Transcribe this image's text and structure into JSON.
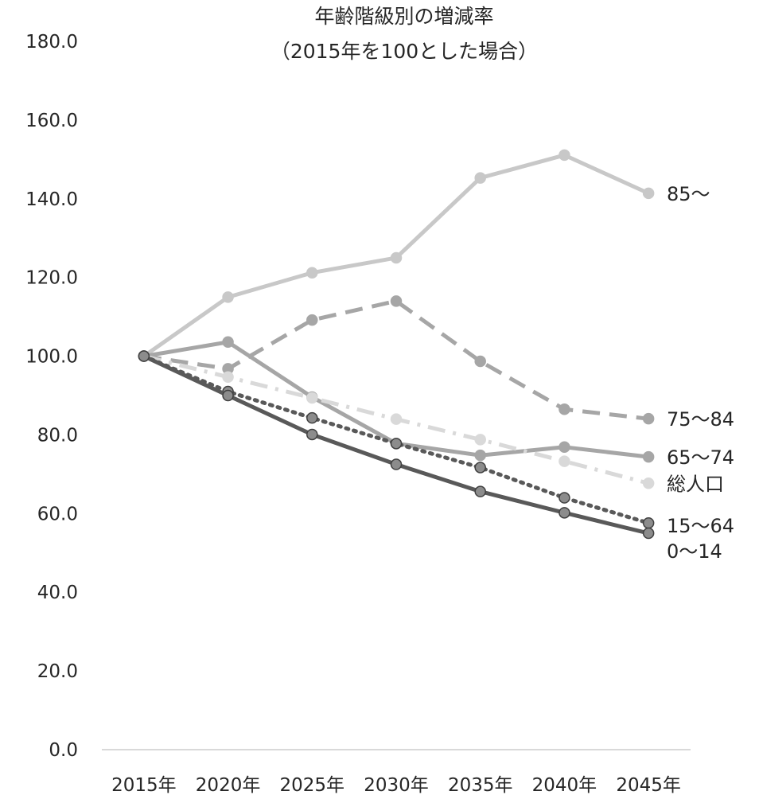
{
  "chart_data": {
    "type": "line",
    "title": "年齢階級別の増減率",
    "subtitle": "（2015年を100とした場合）",
    "xlabel": "",
    "ylabel": "",
    "categories": [
      "2015年",
      "2020年",
      "2025年",
      "2030年",
      "2035年",
      "2040年",
      "2045年"
    ],
    "ylim": [
      0,
      180
    ],
    "yticks": [
      "0.0",
      "20.0",
      "40.0",
      "60.0",
      "80.0",
      "100.0",
      "120.0",
      "140.0",
      "160.0",
      "180.0"
    ],
    "grid": false,
    "legend": "labels at line ends (right)",
    "series": [
      {
        "name": "85～",
        "values": [
          100.0,
          115.0,
          121.2,
          125.0,
          145.3,
          151.1,
          141.4
        ],
        "color": "#c8c8c8",
        "dash": "solid"
      },
      {
        "name": "75～84",
        "values": [
          100.0,
          96.8,
          109.2,
          114.0,
          98.7,
          86.5,
          84.1
        ],
        "color": "#a6a6a6",
        "dash": "dash"
      },
      {
        "name": "65～74",
        "values": [
          100.0,
          103.6,
          89.6,
          77.8,
          74.8,
          76.9,
          74.4
        ],
        "color": "#a6a6a6",
        "dash": "solid"
      },
      {
        "name": "総人口",
        "values": [
          100.0,
          94.7,
          89.4,
          84.0,
          78.8,
          73.3,
          67.7
        ],
        "color": "#d9d9d9",
        "dash": "dashdot"
      },
      {
        "name": "15～64",
        "values": [
          100.0,
          91.0,
          84.3,
          77.8,
          71.7,
          64.0,
          57.6
        ],
        "color": "#595959",
        "dash": "dot"
      },
      {
        "name": "0～14",
        "values": [
          100.0,
          90.0,
          80.1,
          72.5,
          65.6,
          60.2,
          55.0
        ],
        "color": "#595959",
        "dash": "solid"
      }
    ]
  }
}
